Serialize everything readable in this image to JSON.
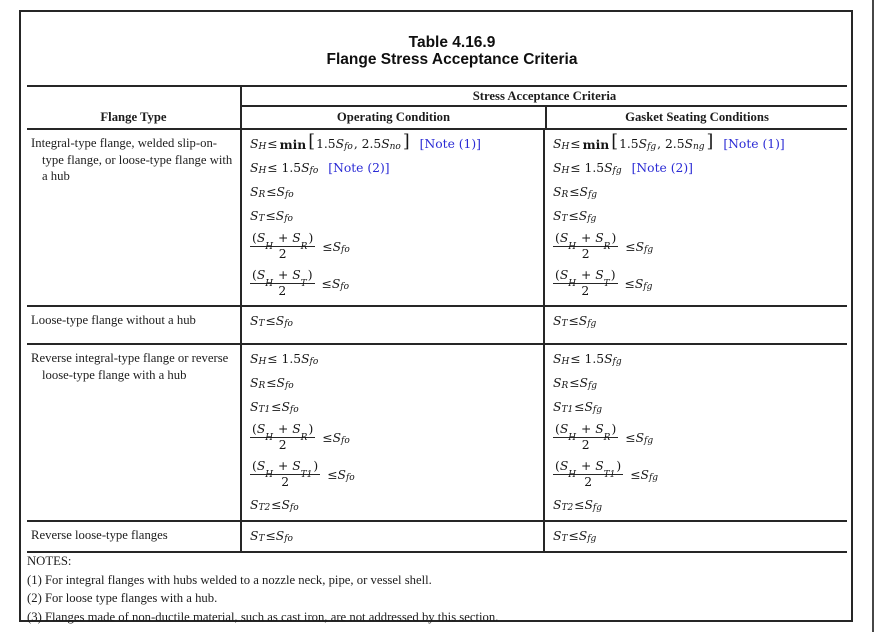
{
  "page": {
    "title_line1": "Table 4.16.9",
    "title_line2": "Flange Stress Acceptance Criteria"
  },
  "table": {
    "col_flange_type": "Flange Type",
    "col_group": "Stress Acceptance Criteria",
    "col_operating": "Operating Condition",
    "col_gasket": "Gasket Seating Conditions",
    "rows": [
      {
        "flange_type": "Integral-type flange, welded slip-on-type flange, or loose-type flange with a hub",
        "operating": [
          {
            "f": "S_H ≤ min[1.5S_fo, 2.5S_no]",
            "note": "[Note (1)]"
          },
          {
            "f": "S_H ≤ 1.5S_fo",
            "note": "[Note (2)]"
          },
          {
            "f": "S_R ≤ S_fo"
          },
          {
            "f": "S_T ≤ S_fo"
          },
          {
            "f": "FRAC{(S_H + S_R)}{2} ≤ S_fo"
          },
          {
            "f": "FRAC{(S_H + S_T)}{2} ≤ S_fo"
          }
        ],
        "gasket": [
          {
            "f": "S_H ≤ min[1.5S_fg, 2.5S_ng]",
            "note": "[Note (1)]"
          },
          {
            "f": "S_H ≤ 1.5S_fg",
            "note": "[Note (2)]"
          },
          {
            "f": "S_R ≤ S_fg"
          },
          {
            "f": "S_T ≤ S_fg"
          },
          {
            "f": "FRAC{(S_H + S_R)}{2} ≤ S_fg"
          },
          {
            "f": "FRAC{(S_H + S_T)}{2} ≤ S_fg"
          }
        ]
      },
      {
        "flange_type": "Loose-type flange without a hub",
        "operating": [
          {
            "f": "S_T ≤ S_fo"
          }
        ],
        "gasket": [
          {
            "f": "S_T ≤ S_fg"
          }
        ]
      },
      {
        "flange_type": "Reverse integral-type flange or reverse loose-type flange with a hub",
        "operating": [
          {
            "f": "S_H ≤ 1.5S_fo"
          },
          {
            "f": "S_R ≤ S_fo"
          },
          {
            "f": "S_T1 ≤ S_fo"
          },
          {
            "f": "FRAC{(S_H + S_R)}{2} ≤ S_fo"
          },
          {
            "f": "FRAC{(S_H + S_T1)}{2} ≤ S_fo"
          },
          {
            "f": "S_T2 ≤ S_fo"
          }
        ],
        "gasket": [
          {
            "f": "S_H ≤ 1.5S_fg"
          },
          {
            "f": "S_R ≤ S_fg"
          },
          {
            "f": "S_T1 ≤ S_fg"
          },
          {
            "f": "FRAC{(S_H + S_R)}{2} ≤ S_fg"
          },
          {
            "f": "FRAC{(S_H + S_T1)}{2} ≤ S_fg"
          },
          {
            "f": "S_T2 ≤ S_fg"
          }
        ]
      },
      {
        "flange_type": "Reverse loose-type flanges",
        "operating": [
          {
            "f": "S_T ≤ S_fo"
          }
        ],
        "gasket": [
          {
            "f": "S_T ≤ S_fg"
          }
        ]
      }
    ]
  },
  "notes": {
    "heading": "NOTES:",
    "items": [
      "(1) For integral flanges with hubs welded to a nozzle neck, pipe, or vessel shell.",
      "(2) For loose type flanges with a hub.",
      "(3) Flanges made of non-ductile material, such as cast iron, are not addressed by this section."
    ]
  },
  "colors": {
    "note_link_blue": "#2b2bd5",
    "border_black": "#262626"
  }
}
